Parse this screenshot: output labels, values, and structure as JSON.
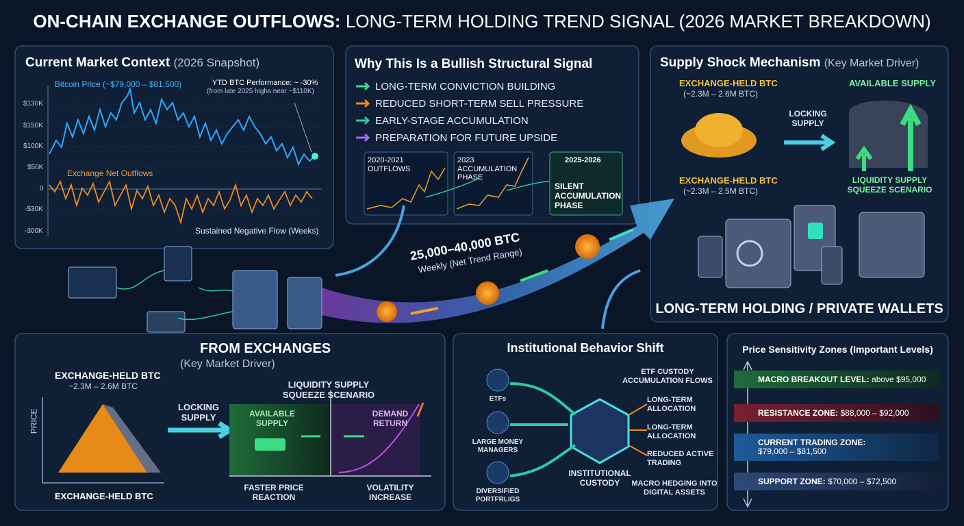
{
  "title": {
    "lead": "ON-CHAIN EXCHANGE OUTFLOWS:",
    "rest": "LONG-TERM HOLDING TREND SIGNAL (2026 MARKET BREAKDOWN)"
  },
  "market_context": {
    "title": "Current Market Context",
    "subtitle": "(2026 Snapshot)",
    "price_label": "Bitcoin Price (~$79,000 – $81,500)",
    "ytd": "YTD BTC Performance: ~ -30%",
    "ytd_note": "(from late 2025 highs near ~$110K)",
    "axis_labels": [
      "$130K",
      "$150K",
      "$100K",
      "$50K",
      "0",
      "-$30K",
      "-300K"
    ],
    "outflow_label": "Exchange Net Outflows",
    "flow_note": "Sustained Negative Flow (Weeks)"
  },
  "bullish": {
    "title": "Why This Is a Bullish Structural Signal",
    "items": [
      "LONG-TERM CONVICTION BUILDING",
      "REDUCED SHORT-TERM SELL PRESSURE",
      "EARLY-STAGE ACCUMULATION",
      "PREPARATION FOR FUTURE UPSIDE"
    ],
    "phases": [
      "2020-2021 OUTFLOWS",
      "2023 ACCUMULATION PHASE",
      "2025-2026"
    ],
    "phase_note": "SILENT ACCUMULATION PHASE"
  },
  "flow": {
    "amount": "25,000–40,000 BTC",
    "note": "Weekly (Net Trend Range)"
  },
  "supply_shock": {
    "title": "Supply Shock Mechanism",
    "subtitle": "(Key Market Driver)",
    "held_top": "EXCHANGE-HELD BTC",
    "held_top_range": "(~2.3M – 2.6M BTC)",
    "locking": "LOCKING SUPPLY",
    "available": "AVAILABLE SUPPLY",
    "held_bottom": "EXCHANGE-HELD BTC",
    "held_bottom_range": "(~2.3M – 2.5M BTC)",
    "squeeze": "LIQUIDITY SUPPLY SQUEEZE SCENARIO",
    "wallets": "LONG-TERM HOLDING / PRIVATE WALLETS"
  },
  "from_exchanges": {
    "title": "FROM EXCHANGES",
    "subtitle": "(Key Market Driver)",
    "held": "EXCHANGE-HELD BTC",
    "held_range": "~2.3M – 2.6M BTC",
    "y_axis": "PRICE",
    "x_axis": "EXCHANGE-HELD BTC",
    "locking": "LOCKING SUPPLY",
    "squeeze": "LIQUIDITY SUPPLY SQUEEZE SCENARIO",
    "available": "AVAILABLE SUPPLY",
    "demand": "DEMAND RETURN",
    "faster": "FASTER PRICE REACTION",
    "volatility": "VOLATILITY INCREASE"
  },
  "institutional": {
    "title": "Institutional Behavior Shift",
    "sources": [
      "ETFs",
      "LARGE MONEY MANAGERS",
      "DIVERSIFIED PORTFRLIGS"
    ],
    "center": "INSTITUTIONAL CUSTODY",
    "outputs": [
      "ETF CUSTODY ACCUMULATION FLOWS",
      "LONG-TERM ALLOCATION",
      "LONG-TERM ALLOCATION",
      "REDUCED ACTIVE TRADING",
      "MACRO HEDGING INTO DIGITAL ASSETS"
    ]
  },
  "zones": {
    "title": "Price Sensitivity Zones (Important Levels)",
    "items": [
      {
        "label": "MACRO BREAKOUT LEVEL:",
        "range": "above $95,000"
      },
      {
        "label": "RESISTANCE ZONE:",
        "range": "$88,000 – $92,000"
      },
      {
        "label": "CURRENT TRADING ZONE:",
        "range": "$79,000 – $81,500"
      },
      {
        "label": "SUPPORT ZONE:",
        "range": "$70,000 – $72,500"
      }
    ]
  }
}
